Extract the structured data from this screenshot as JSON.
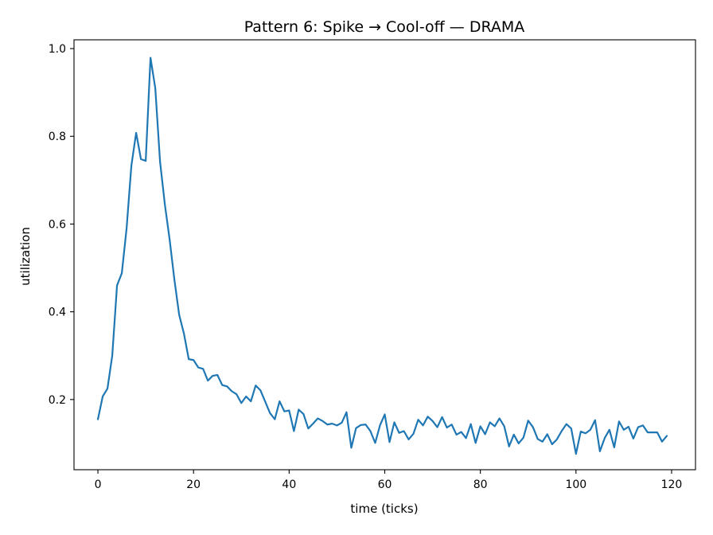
{
  "chart_data": {
    "type": "line",
    "title": "Pattern 6: Spike → Cool-off — DRAMA",
    "xlabel": "time (ticks)",
    "ylabel": "utilization",
    "xlim": [
      -5,
      125
    ],
    "ylim": [
      0.04,
      1.02
    ],
    "xticks": [
      0,
      20,
      40,
      60,
      80,
      100,
      120
    ],
    "yticks": [
      0.2,
      0.4,
      0.6,
      0.8,
      1.0
    ],
    "xtick_labels": [
      "0",
      "20",
      "40",
      "60",
      "80",
      "100",
      "120"
    ],
    "ytick_labels": [
      "0.2",
      "0.4",
      "0.6",
      "0.8",
      "1.0"
    ],
    "grid": false,
    "series": [
      {
        "color": "#1f77b4",
        "x": [
          0,
          1,
          2,
          3,
          4,
          5,
          6,
          7,
          8,
          9,
          10,
          11,
          12,
          13,
          14,
          15,
          16,
          17,
          18,
          19,
          20,
          21,
          22,
          23,
          24,
          25,
          26,
          27,
          28,
          29,
          30,
          31,
          32,
          33,
          34,
          35,
          36,
          37,
          38,
          39,
          40,
          41,
          42,
          43,
          44,
          45,
          46,
          47,
          48,
          49,
          50,
          51,
          52,
          53,
          54,
          55,
          56,
          57,
          58,
          59,
          60,
          61,
          62,
          63,
          64,
          65,
          66,
          67,
          68,
          69,
          70,
          71,
          72,
          73,
          74,
          75,
          76,
          77,
          78,
          79,
          80,
          81,
          82,
          83,
          84,
          85,
          86,
          87,
          88,
          89,
          90,
          91,
          92,
          93,
          94,
          95,
          96,
          97,
          98,
          99,
          100,
          101,
          102,
          103,
          104,
          105,
          106,
          107,
          108,
          109,
          110,
          111,
          112,
          113,
          114,
          115,
          116,
          117,
          118,
          119
        ],
        "y": [
          0.155,
          0.207,
          0.225,
          0.3,
          0.46,
          0.488,
          0.59,
          0.733,
          0.808,
          0.748,
          0.744,
          0.979,
          0.91,
          0.742,
          0.645,
          0.565,
          0.473,
          0.393,
          0.35,
          0.292,
          0.29,
          0.273,
          0.27,
          0.243,
          0.254,
          0.256,
          0.233,
          0.23,
          0.219,
          0.212,
          0.192,
          0.207,
          0.196,
          0.232,
          0.221,
          0.195,
          0.169,
          0.155,
          0.196,
          0.173,
          0.175,
          0.128,
          0.177,
          0.167,
          0.134,
          0.145,
          0.157,
          0.151,
          0.143,
          0.145,
          0.141,
          0.147,
          0.171,
          0.09,
          0.135,
          0.142,
          0.143,
          0.128,
          0.101,
          0.141,
          0.166,
          0.103,
          0.148,
          0.124,
          0.128,
          0.109,
          0.122,
          0.154,
          0.141,
          0.161,
          0.151,
          0.137,
          0.16,
          0.136,
          0.143,
          0.12,
          0.126,
          0.112,
          0.144,
          0.101,
          0.139,
          0.121,
          0.148,
          0.139,
          0.157,
          0.139,
          0.093,
          0.12,
          0.1,
          0.113,
          0.152,
          0.137,
          0.11,
          0.104,
          0.121,
          0.098,
          0.109,
          0.128,
          0.144,
          0.134,
          0.076,
          0.127,
          0.123,
          0.131,
          0.153,
          0.082,
          0.112,
          0.131,
          0.091,
          0.15,
          0.131,
          0.138,
          0.111,
          0.137,
          0.141,
          0.125,
          0.125,
          0.125,
          0.104,
          0.117
        ]
      }
    ]
  }
}
